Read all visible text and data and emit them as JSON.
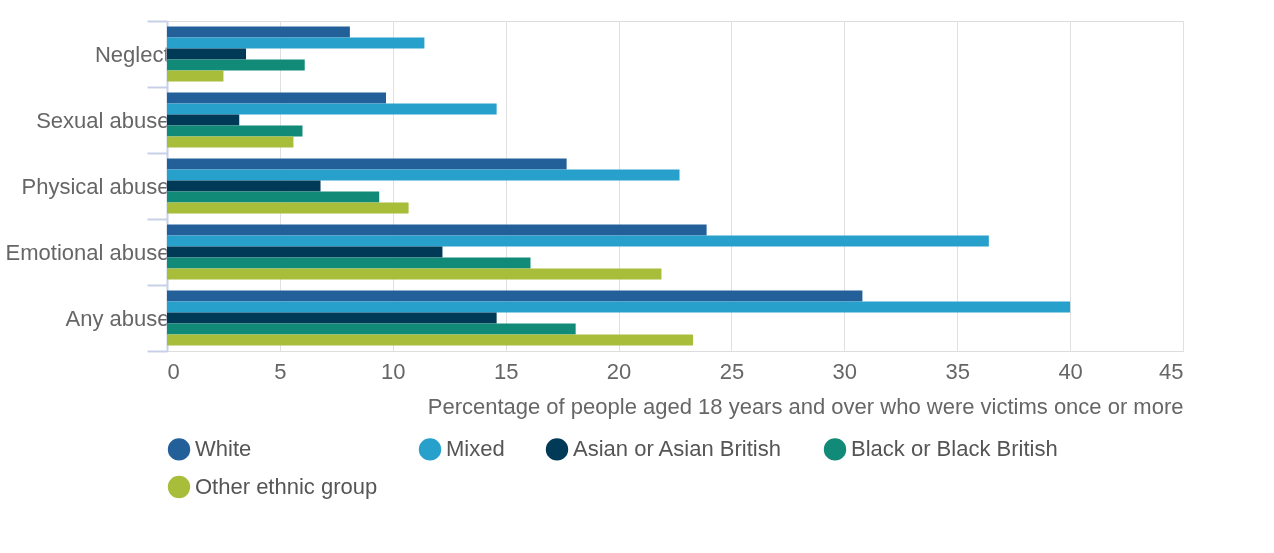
{
  "chart_data": {
    "type": "bar",
    "orientation": "horizontal",
    "categories": [
      "Neglect",
      "Sexual abuse",
      "Physical abuse",
      "Emotional abuse",
      "Any abuse"
    ],
    "xlabel": "Percentage of people aged 18 years and over who were victims once or more",
    "xlim": [
      0,
      45
    ],
    "xticks": [
      0,
      5,
      10,
      15,
      20,
      25,
      30,
      35,
      40,
      45
    ],
    "grid": "x",
    "legend": "bottom",
    "series": [
      {
        "name": "White",
        "color": "#23609a",
        "values": [
          8.1,
          9.7,
          17.7,
          23.9,
          30.8
        ]
      },
      {
        "name": "Mixed",
        "color": "#28a0cc",
        "values": [
          11.4,
          14.6,
          22.7,
          36.4,
          40.0
        ]
      },
      {
        "name": "Asian or Asian British",
        "color": "#003a57",
        "values": [
          3.5,
          3.2,
          6.8,
          12.2,
          14.6
        ]
      },
      {
        "name": "Black or Black British",
        "color": "#128a78",
        "values": [
          6.1,
          6.0,
          9.4,
          16.1,
          18.1
        ]
      },
      {
        "name": "Other ethnic group",
        "color": "#a8bd3a",
        "values": [
          2.5,
          5.6,
          10.7,
          21.9,
          23.3
        ]
      }
    ]
  }
}
